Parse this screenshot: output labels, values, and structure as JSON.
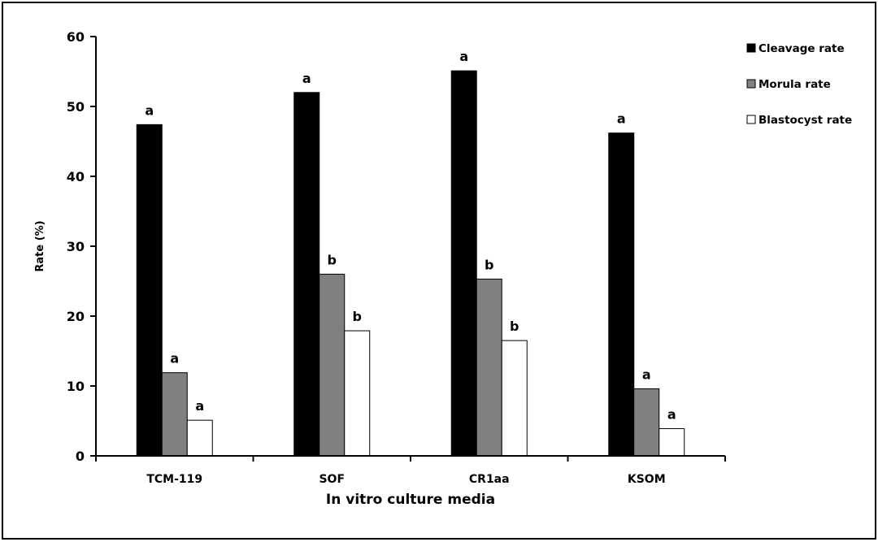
{
  "chart_data": {
    "type": "bar",
    "categories": [
      "TCM-119",
      "SOF",
      "CR1aa",
      "KSOM"
    ],
    "series": [
      {
        "name": "Cleavage rate",
        "values": [
          47.4,
          52.0,
          55.1,
          46.2
        ],
        "labels": [
          "a",
          "a",
          "a",
          "a"
        ],
        "color": "#000000"
      },
      {
        "name": "Morula rate",
        "values": [
          11.9,
          26.0,
          25.3,
          9.6
        ],
        "labels": [
          "a",
          "b",
          "b",
          "a"
        ],
        "color": "#808080"
      },
      {
        "name": "Blastocyst rate",
        "values": [
          5.1,
          17.9,
          16.5,
          3.9
        ],
        "labels": [
          "a",
          "b",
          "b",
          "a"
        ],
        "color": "#ffffff"
      }
    ],
    "xlabel": "In vitro culture media",
    "ylabel": "Rate (%)",
    "ylim": [
      0,
      60
    ],
    "yticks": [
      0,
      10,
      20,
      30,
      40,
      50,
      60
    ],
    "grid": false,
    "legend": "top-right"
  }
}
